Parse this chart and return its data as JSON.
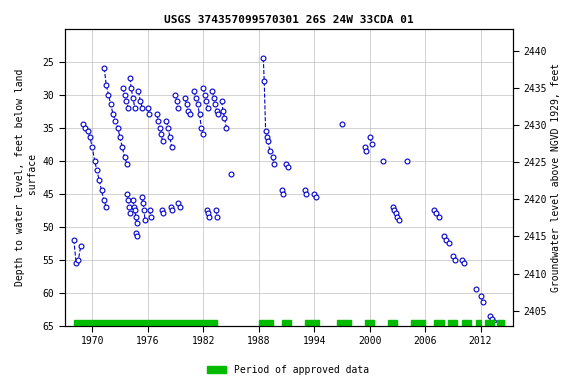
{
  "title": "USGS 374357099570301 26S 24W 33CDA 01",
  "ylabel_left": "Depth to water level, feet below land\n surface",
  "ylabel_right": "Groundwater level above NGVD 1929, feet",
  "ylim_left": [
    65,
    20
  ],
  "ylim_right": [
    2403,
    2443
  ],
  "xlim": [
    1967.0,
    2015.5
  ],
  "xticks": [
    1970,
    1976,
    1982,
    1988,
    1994,
    2000,
    2006,
    2012
  ],
  "yticks_left": [
    25,
    30,
    35,
    40,
    45,
    50,
    55,
    60,
    65
  ],
  "yticks_right": [
    2405,
    2410,
    2415,
    2420,
    2425,
    2430,
    2435,
    2440
  ],
  "background_color": "#ffffff",
  "grid_color": "#c0c0c0",
  "data_color": "#0000cc",
  "legend_color": "#00bb00",
  "segments": [
    [
      [
        1968.0,
        52.0
      ],
      [
        1968.25,
        55.5
      ],
      [
        1968.5,
        55.0
      ],
      [
        1968.75,
        53.0
      ]
    ],
    [
      [
        1969.0,
        34.5
      ],
      [
        1969.25,
        35.0
      ],
      [
        1969.5,
        35.5
      ],
      [
        1969.75,
        36.5
      ],
      [
        1970.0,
        38.0
      ],
      [
        1970.25,
        40.0
      ],
      [
        1970.5,
        41.5
      ],
      [
        1970.75,
        43.0
      ],
      [
        1971.0,
        44.5
      ],
      [
        1971.25,
        46.0
      ],
      [
        1971.5,
        47.0
      ]
    ],
    [
      [
        1971.3,
        26.0
      ],
      [
        1971.5,
        28.5
      ],
      [
        1971.75,
        30.0
      ],
      [
        1972.0,
        31.5
      ],
      [
        1972.25,
        33.0
      ],
      [
        1972.5,
        34.0
      ],
      [
        1972.75,
        35.0
      ],
      [
        1973.0,
        36.5
      ],
      [
        1973.25,
        38.0
      ],
      [
        1973.5,
        39.5
      ],
      [
        1973.75,
        40.5
      ]
    ],
    [
      [
        1973.3,
        29.0
      ],
      [
        1973.5,
        30.0
      ],
      [
        1973.7,
        31.0
      ],
      [
        1973.9,
        32.0
      ]
    ],
    [
      [
        1973.8,
        45.0
      ],
      [
        1973.9,
        46.0
      ],
      [
        1974.0,
        47.0
      ],
      [
        1974.1,
        48.0
      ]
    ],
    [
      [
        1974.1,
        27.5
      ],
      [
        1974.2,
        29.0
      ],
      [
        1974.4,
        30.5
      ],
      [
        1974.6,
        32.0
      ]
    ],
    [
      [
        1974.4,
        46.0
      ],
      [
        1974.5,
        47.0
      ],
      [
        1974.6,
        47.5
      ],
      [
        1974.7,
        48.5
      ],
      [
        1974.8,
        49.5
      ]
    ],
    [
      [
        1974.75,
        51.0
      ],
      [
        1974.85,
        51.5
      ]
    ],
    [
      [
        1975.0,
        29.5
      ],
      [
        1975.2,
        31.0
      ],
      [
        1975.4,
        32.0
      ]
    ],
    [
      [
        1975.4,
        45.5
      ],
      [
        1975.5,
        46.5
      ],
      [
        1975.6,
        47.5
      ],
      [
        1975.7,
        49.0
      ]
    ],
    [
      [
        1976.0,
        32.0
      ],
      [
        1976.15,
        33.0
      ]
    ],
    [
      [
        1976.2,
        47.5
      ],
      [
        1976.3,
        48.5
      ]
    ],
    [
      [
        1977.0,
        33.0
      ],
      [
        1977.15,
        34.0
      ],
      [
        1977.3,
        35.0
      ],
      [
        1977.45,
        36.0
      ],
      [
        1977.6,
        37.0
      ]
    ],
    [
      [
        1977.5,
        47.5
      ],
      [
        1977.6,
        48.0
      ]
    ],
    [
      [
        1978.0,
        34.0
      ],
      [
        1978.2,
        35.0
      ],
      [
        1978.4,
        36.5
      ],
      [
        1978.6,
        38.0
      ]
    ],
    [
      [
        1978.5,
        47.0
      ],
      [
        1978.65,
        47.5
      ]
    ],
    [
      [
        1979.0,
        30.0
      ],
      [
        1979.15,
        31.0
      ],
      [
        1979.3,
        32.0
      ]
    ],
    [
      [
        1979.3,
        46.5
      ],
      [
        1979.45,
        47.0
      ]
    ],
    [
      [
        1980.0,
        30.5
      ],
      [
        1980.2,
        31.5
      ],
      [
        1980.4,
        32.5
      ],
      [
        1980.6,
        33.0
      ]
    ],
    [
      [
        1981.0,
        29.5
      ],
      [
        1981.2,
        30.5
      ],
      [
        1981.4,
        31.5
      ],
      [
        1981.6,
        33.0
      ],
      [
        1981.8,
        35.0
      ],
      [
        1982.0,
        36.0
      ]
    ],
    [
      [
        1982.0,
        29.0
      ],
      [
        1982.15,
        30.0
      ],
      [
        1982.3,
        31.0
      ],
      [
        1982.5,
        32.0
      ]
    ],
    [
      [
        1982.4,
        47.5
      ],
      [
        1982.5,
        48.0
      ],
      [
        1982.6,
        48.5
      ]
    ],
    [
      [
        1983.0,
        29.5
      ],
      [
        1983.15,
        30.5
      ],
      [
        1983.3,
        31.5
      ],
      [
        1983.45,
        32.5
      ],
      [
        1983.6,
        33.0
      ]
    ],
    [
      [
        1983.4,
        47.5
      ],
      [
        1983.5,
        48.5
      ]
    ],
    [
      [
        1984.0,
        31.0
      ],
      [
        1984.15,
        32.5
      ],
      [
        1984.3,
        33.5
      ],
      [
        1984.5,
        35.0
      ]
    ],
    [
      [
        1985.0,
        42.0
      ]
    ],
    [
      [
        1988.5,
        24.5
      ],
      [
        1988.6,
        28.0
      ],
      [
        1988.75,
        35.5
      ],
      [
        1988.9,
        36.5
      ]
    ],
    [
      [
        1989.0,
        37.0
      ],
      [
        1989.2,
        38.5
      ]
    ],
    [
      [
        1989.5,
        39.5
      ],
      [
        1989.65,
        40.5
      ]
    ],
    [
      [
        1990.5,
        44.5
      ],
      [
        1990.65,
        45.0
      ]
    ],
    [
      [
        1991.0,
        40.5
      ],
      [
        1991.15,
        41.0
      ]
    ],
    [
      [
        1993.0,
        44.5
      ],
      [
        1993.15,
        45.0
      ]
    ],
    [
      [
        1994.0,
        45.0
      ],
      [
        1994.15,
        45.5
      ]
    ],
    [
      [
        1997.0,
        34.5
      ]
    ],
    [
      [
        1999.5,
        38.0
      ],
      [
        1999.65,
        38.5
      ]
    ],
    [
      [
        2000.0,
        36.5
      ],
      [
        2000.3,
        37.5
      ]
    ],
    [
      [
        2001.5,
        40.0
      ]
    ],
    [
      [
        2002.5,
        47.0
      ],
      [
        2002.65,
        47.5
      ],
      [
        2002.8,
        48.0
      ],
      [
        2003.0,
        48.5
      ],
      [
        2003.15,
        49.0
      ]
    ],
    [
      [
        2004.0,
        40.0
      ]
    ],
    [
      [
        2007.0,
        47.5
      ],
      [
        2007.2,
        48.0
      ],
      [
        2007.5,
        48.5
      ]
    ],
    [
      [
        2008.0,
        51.5
      ],
      [
        2008.3,
        52.0
      ],
      [
        2008.6,
        52.5
      ]
    ],
    [
      [
        2009.0,
        54.5
      ],
      [
        2009.2,
        55.0
      ]
    ],
    [
      [
        2010.0,
        55.0
      ],
      [
        2010.2,
        55.5
      ]
    ],
    [
      [
        2011.5,
        59.5
      ]
    ],
    [
      [
        2012.0,
        60.5
      ],
      [
        2012.3,
        61.5
      ]
    ],
    [
      [
        2013.0,
        63.5
      ],
      [
        2013.2,
        64.0
      ],
      [
        2013.5,
        64.5
      ],
      [
        2013.7,
        64.8
      ]
    ]
  ],
  "approved_periods": [
    [
      1968.0,
      1983.5
    ],
    [
      1988.0,
      1989.5
    ],
    [
      1990.5,
      1991.5
    ],
    [
      1993.0,
      1994.5
    ],
    [
      1996.5,
      1998.0
    ],
    [
      1999.5,
      2000.5
    ],
    [
      2002.0,
      2003.0
    ],
    [
      2004.5,
      2006.0
    ],
    [
      2007.0,
      2008.0
    ],
    [
      2008.5,
      2009.5
    ],
    [
      2010.0,
      2011.0
    ],
    [
      2011.5,
      2012.0
    ],
    [
      2012.5,
      2013.5
    ],
    [
      2013.8,
      2014.5
    ]
  ]
}
